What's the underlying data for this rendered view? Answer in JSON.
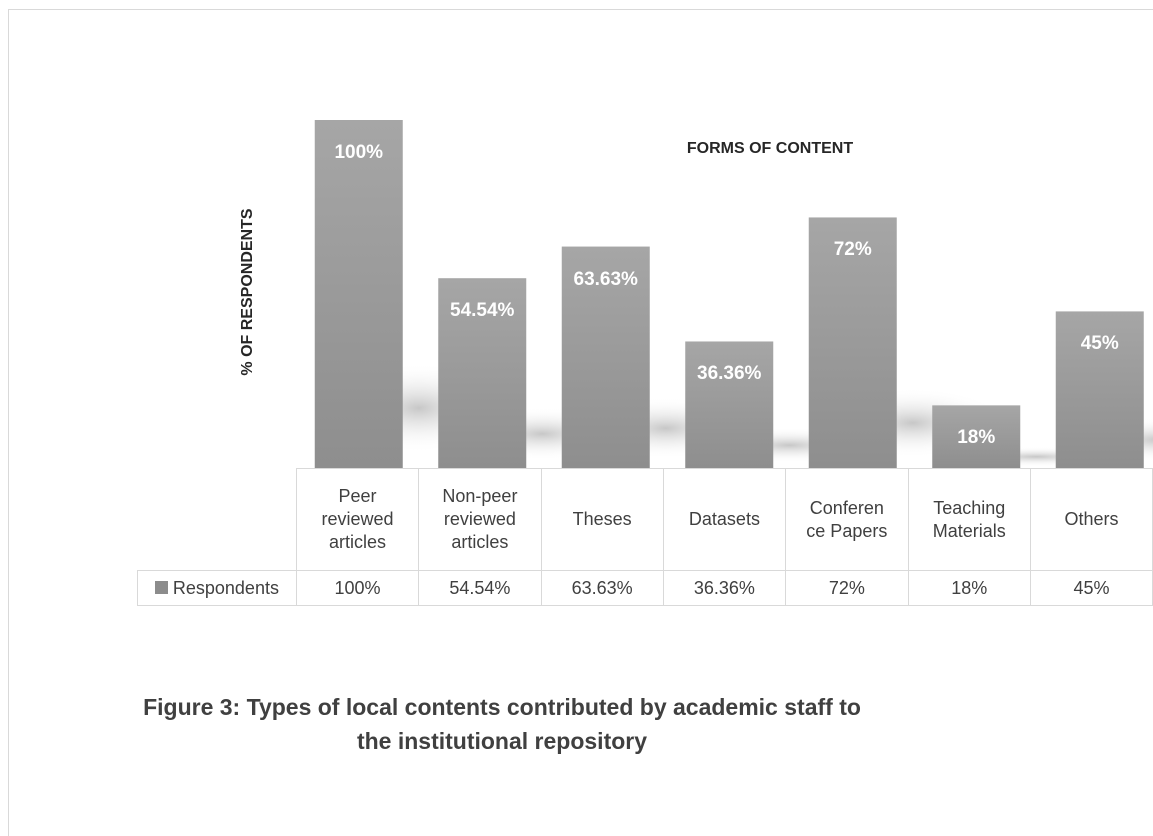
{
  "chart_data": {
    "type": "bar",
    "categories": [
      "Peer reviewed articles",
      "Non-peer reviewed articles",
      "Theses",
      "Datasets",
      "Conferen ce Papers",
      "Teaching Materials",
      "Others"
    ],
    "category_lines": [
      [
        "Peer",
        "reviewed",
        "articles"
      ],
      [
        "Non-peer",
        "reviewed",
        "articles"
      ],
      [
        "Theses"
      ],
      [
        "Datasets"
      ],
      [
        "Conferen",
        "ce Papers"
      ],
      [
        "Teaching",
        "Materials"
      ],
      [
        "Others"
      ]
    ],
    "series": [
      {
        "name": "Respondents",
        "values": [
          100,
          54.54,
          63.63,
          36.36,
          72,
          18,
          45
        ],
        "labels": [
          "100%",
          "54.54%",
          "63.63%",
          "36.36%",
          "72%",
          "18%",
          "45%"
        ],
        "color": "#9a9a9a"
      }
    ],
    "xlabel": "FORMS OF CONTENT",
    "ylabel": "% OF RESPONDENTS",
    "ylim": [
      0,
      100
    ],
    "grid": false,
    "legend": "data-table"
  },
  "caption": {
    "line1": "Figure 3: Types of local contents contributed by academic staff to",
    "line2": "the institutional repository"
  }
}
